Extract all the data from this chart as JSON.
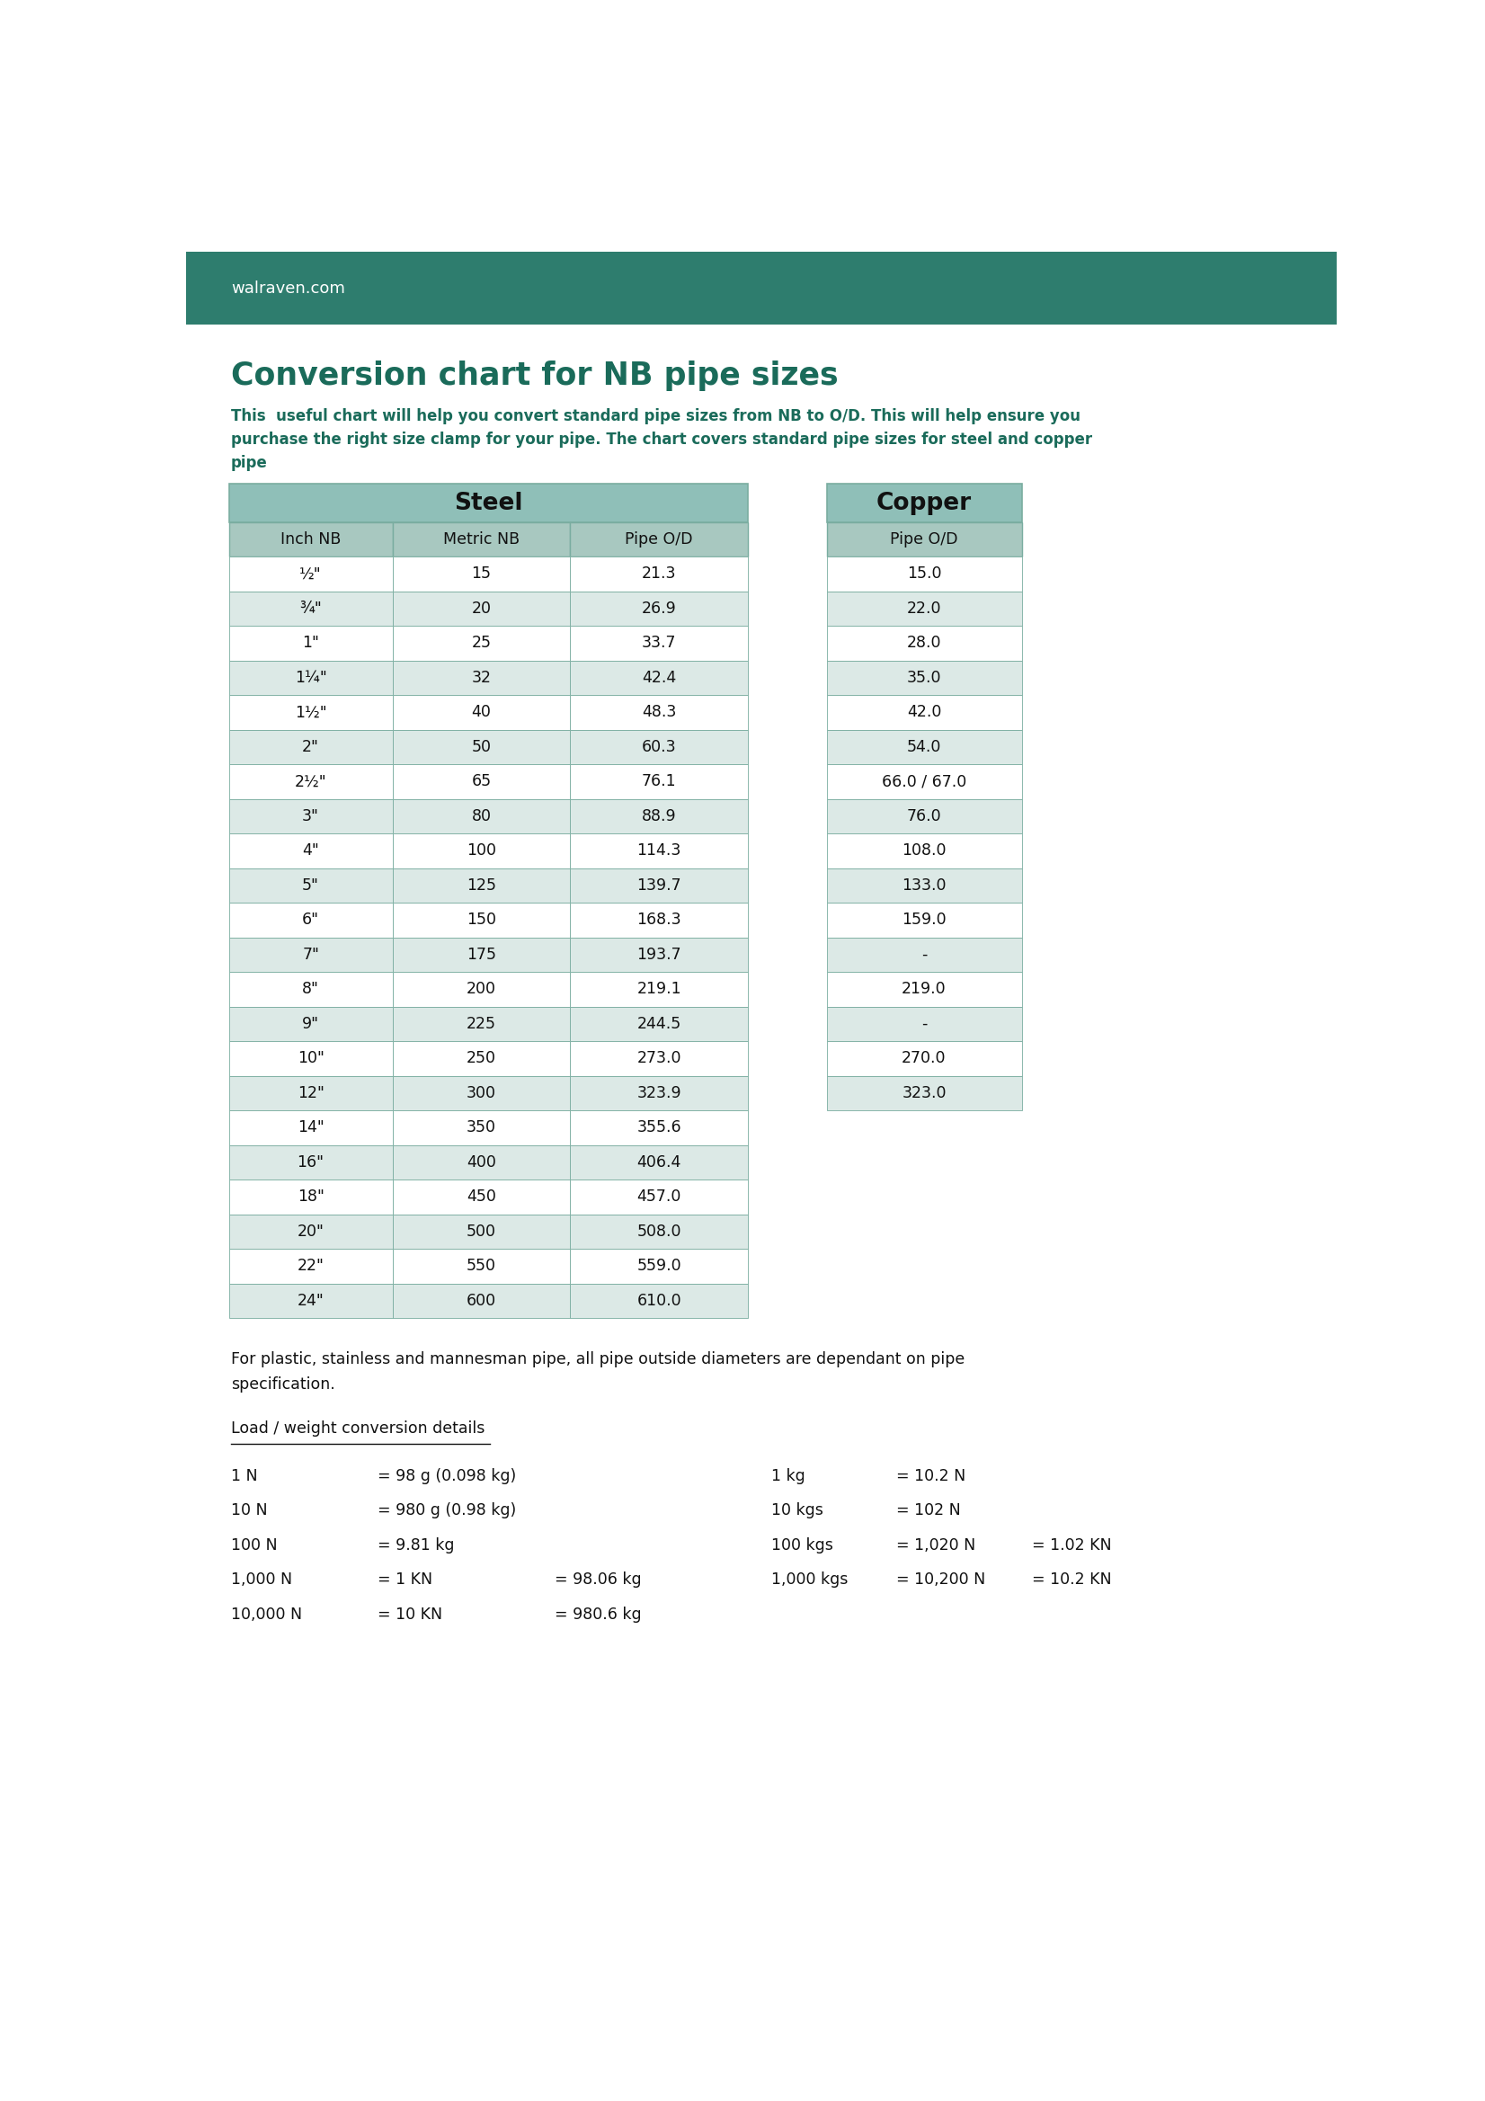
{
  "header_bg": "#2e7d6e",
  "header_text_color": "#ffffff",
  "title": "Conversion chart for NB pipe sizes",
  "title_color": "#1a6b5a",
  "subtitle": "This  useful chart will help you convert standard pipe sizes from NB to O/D. This will help ensure you\npurchase the right size clamp for your pipe. The chart covers standard pipe sizes for steel and copper\npipe",
  "subtitle_color": "#1a6b5a",
  "website": "walraven.com",
  "website_color": "#ffffff",
  "steel_header": "Steel",
  "copper_header": "Copper",
  "col_headers_steel": [
    "Inch NB",
    "Metric NB",
    "Pipe O/D"
  ],
  "col_header_copper": "Pipe O/D",
  "steel_rows": [
    [
      "½\"",
      "15",
      "21.3"
    ],
    [
      "¾\"",
      "20",
      "26.9"
    ],
    [
      "1\"",
      "25",
      "33.7"
    ],
    [
      "1¼\"",
      "32",
      "42.4"
    ],
    [
      "1½\"",
      "40",
      "48.3"
    ],
    [
      "2\"",
      "50",
      "60.3"
    ],
    [
      "2½\"",
      "65",
      "76.1"
    ],
    [
      "3\"",
      "80",
      "88.9"
    ],
    [
      "4\"",
      "100",
      "114.3"
    ],
    [
      "5\"",
      "125",
      "139.7"
    ],
    [
      "6\"",
      "150",
      "168.3"
    ],
    [
      "7\"",
      "175",
      "193.7"
    ],
    [
      "8\"",
      "200",
      "219.1"
    ],
    [
      "9\"",
      "225",
      "244.5"
    ],
    [
      "10\"",
      "250",
      "273.0"
    ],
    [
      "12\"",
      "300",
      "323.9"
    ],
    [
      "14\"",
      "350",
      "355.6"
    ],
    [
      "16\"",
      "400",
      "406.4"
    ],
    [
      "18\"",
      "450",
      "457.0"
    ],
    [
      "20\"",
      "500",
      "508.0"
    ],
    [
      "22\"",
      "550",
      "559.0"
    ],
    [
      "24\"",
      "600",
      "610.0"
    ]
  ],
  "copper_rows": [
    "15.0",
    "22.0",
    "28.0",
    "35.0",
    "42.0",
    "54.0",
    "66.0 / 67.0",
    "76.0",
    "108.0",
    "133.0",
    "159.0",
    "-",
    "219.0",
    "-",
    "270.0",
    "323.0"
  ],
  "copper_row_count": 16,
  "table_border_color": "#7aada0",
  "row_colors": [
    "#ffffff",
    "#dce9e6"
  ],
  "header_row_color": "#a8c8c0",
  "main_header_color": "#8fbfb8",
  "note_text": "For plastic, stainless and mannesman pipe, all pipe outside diameters are dependant on pipe\nspecification.",
  "load_title": "Load / weight conversion details",
  "load_lines_left": [
    [
      "1 N",
      "= 98 g (0.098 kg)",
      ""
    ],
    [
      "10 N",
      "= 980 g (0.98 kg)",
      ""
    ],
    [
      "100 N",
      "= 9.81 kg",
      ""
    ],
    [
      "1,000 N",
      "= 1 KN",
      "= 98.06 kg"
    ],
    [
      "10,000 N",
      "= 10 KN",
      "= 980.6 kg"
    ]
  ],
  "load_lines_right": [
    [
      "1 kg",
      "= 10.2 N",
      ""
    ],
    [
      "10 kgs",
      "= 102 N",
      ""
    ],
    [
      "100 kgs",
      "= 1,020 N",
      "= 1.02 KN"
    ],
    [
      "1,000 kgs",
      "= 10,200 N",
      "= 10.2 KN"
    ],
    [
      "",
      "",
      ""
    ]
  ],
  "bg_color": "#ffffff"
}
